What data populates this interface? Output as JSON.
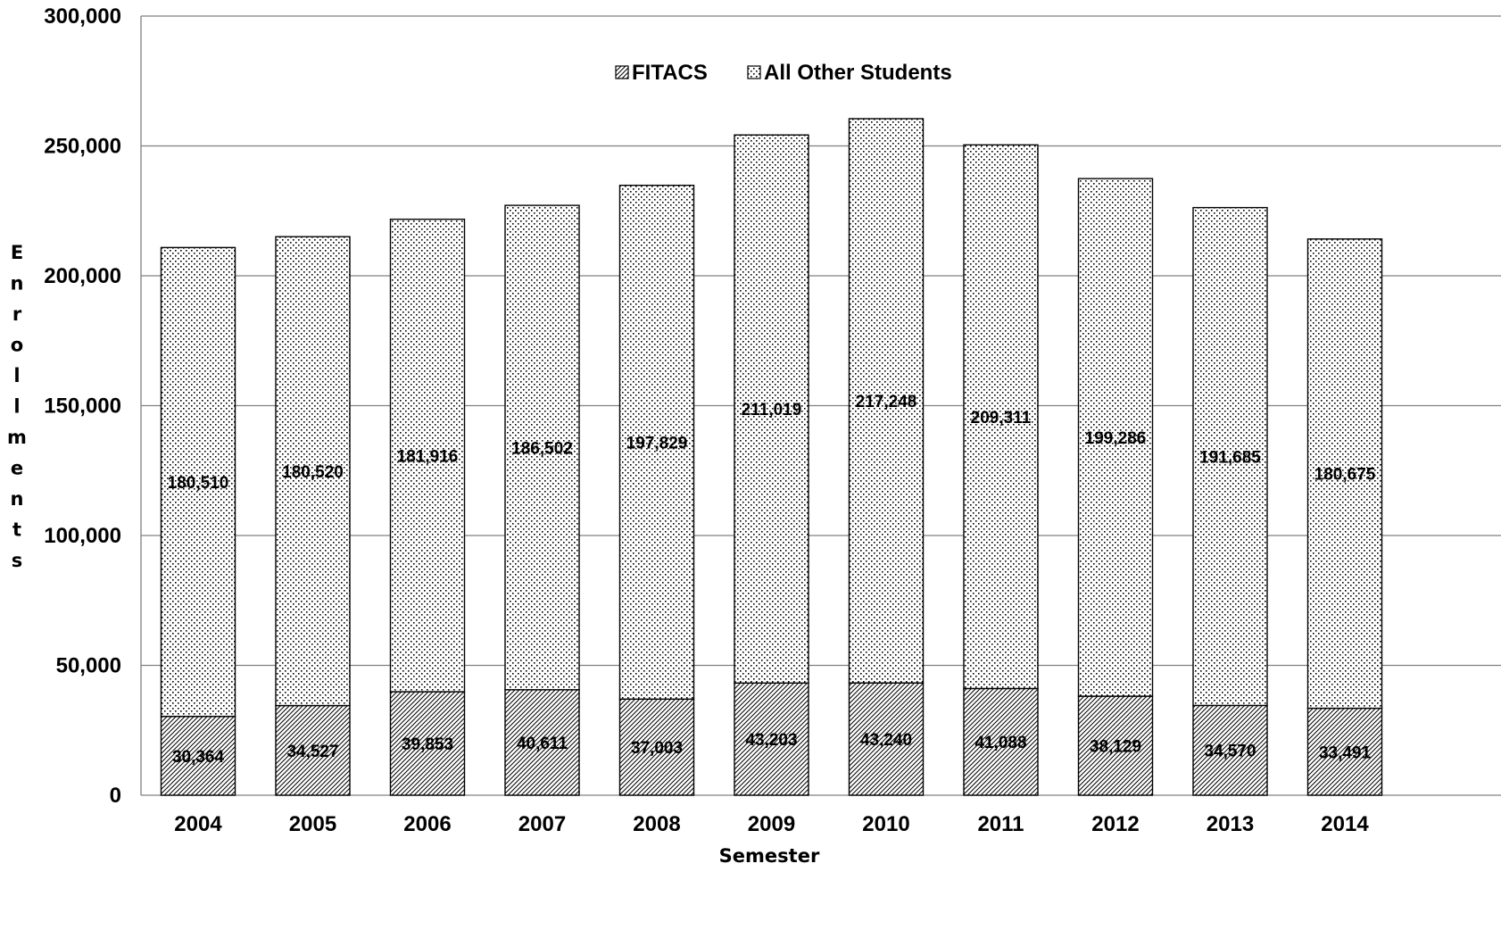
{
  "chart_data": {
    "type": "bar",
    "stacked": true,
    "categories": [
      "2004",
      "2005",
      "2006",
      "2007",
      "2008",
      "2009",
      "2010",
      "2011",
      "2012",
      "2013",
      "2014"
    ],
    "series": [
      {
        "name": "FITACS",
        "pattern": "diagonal-hatch",
        "values": [
          30364,
          34527,
          39853,
          40611,
          37003,
          43203,
          43240,
          41088,
          38129,
          34570,
          33491
        ]
      },
      {
        "name": "All Other Students",
        "pattern": "dots",
        "values": [
          180510,
          180520,
          181916,
          186502,
          197829,
          211019,
          217248,
          209311,
          199286,
          191685,
          180675
        ]
      }
    ],
    "data_labels": {
      "FITACS": [
        "30,364",
        "34,527",
        "39,853",
        "40,611",
        "37,003",
        "43,203",
        "43,240",
        "41,088",
        "38,129",
        "34,570",
        "33,491"
      ],
      "All Other Students": [
        "180,510",
        "180,520",
        "181,916",
        "186,502",
        "197,829",
        "211,019",
        "217,248",
        "209,311",
        "199,286",
        "191,685",
        "180,675"
      ]
    },
    "yticks": [
      "0",
      "50,000",
      "100,000",
      "150,000",
      "200,000",
      "250,000",
      "300,000"
    ],
    "ylim": [
      0,
      300000
    ],
    "xlabel": "Semester",
    "ylabel": "Enrollments",
    "title": "",
    "grid": true,
    "legend": "top-center",
    "colors": {
      "bar_fill": "#ffffff",
      "pattern": "#000000",
      "gridline": "#808080"
    }
  }
}
